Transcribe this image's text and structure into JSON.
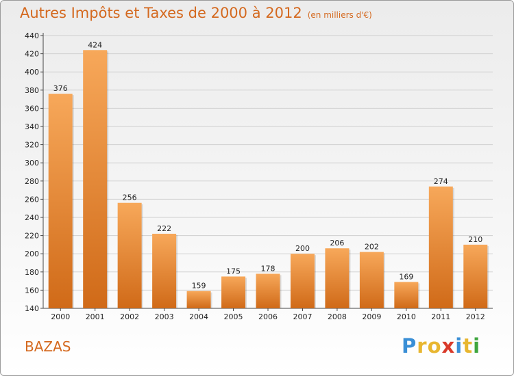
{
  "title": "Autres Impôts et Taxes de 2000 à 2012",
  "subtitle": "(en milliers d'€)",
  "city": "BAZAS",
  "logo": {
    "letters": [
      "P",
      "r",
      "o",
      "x",
      "i",
      "t",
      "i"
    ],
    "colors": [
      "#3a8fd6",
      "#e8b630",
      "#e8b630",
      "#d93a2a",
      "#3a8fd6",
      "#e8b630",
      "#3fa63f"
    ]
  },
  "colors": {
    "bar_top": "#f7a85a",
    "bar_bottom": "#d06a18",
    "accent": "#d4691f"
  },
  "chart_data": {
    "type": "bar",
    "title": "Autres Impôts et Taxes de 2000 à 2012",
    "subtitle": "(en milliers d'€)",
    "categories": [
      "2000",
      "2001",
      "2002",
      "2003",
      "2004",
      "2005",
      "2006",
      "2007",
      "2008",
      "2009",
      "2010",
      "2011",
      "2012"
    ],
    "values": [
      376,
      424,
      256,
      222,
      159,
      175,
      178,
      200,
      206,
      202,
      169,
      274,
      210
    ],
    "ylim": [
      140,
      440
    ],
    "yticks": [
      140,
      160,
      180,
      200,
      220,
      240,
      260,
      280,
      300,
      320,
      340,
      360,
      380,
      400,
      420,
      440
    ],
    "grid": true
  }
}
